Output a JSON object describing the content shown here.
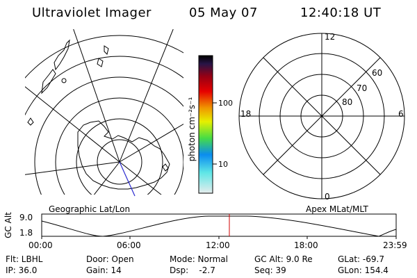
{
  "header": {
    "title": "Ultraviolet Imager",
    "date": "05 May 07",
    "time": "12:40:18 UT"
  },
  "colorbar": {
    "unit_label": "photon cm⁻²s⁻¹",
    "tick_100": "100",
    "tick_10": "10",
    "stops": [
      "#e6ecec",
      "#5ee6e6",
      "#0a8cf0",
      "#46dc46",
      "#e6f000",
      "#f09600",
      "#e60000",
      "#960014",
      "#281446",
      "#000000"
    ]
  },
  "right_panel": {
    "mlt_12": "12",
    "mlt_18": "18",
    "mlt_6": "6",
    "mlt_0": "0",
    "lat_60": "60",
    "lat_70": "70",
    "lat_80": "80"
  },
  "panel_labels": {
    "left": "Geographic Lat/Lon",
    "right": "Apex MLat/MLT"
  },
  "gc_plot": {
    "axis_label": "GC Alt",
    "y_max": "9.0",
    "y_min": "1.8",
    "x_ticks": [
      "00:00",
      "06:00",
      "12:00",
      "18:00",
      "23:59"
    ],
    "marker_color": "#d00000"
  },
  "info": {
    "flt": "Flt: LBHL",
    "ip": "IP: 36.0",
    "door": "Door: Open",
    "gain": "Gain: 14",
    "mode": "Mode: Normal",
    "dsp": "Dsp:    -2.7",
    "gc_alt": "GC Alt: 9.0 Re",
    "seq": "Seq: 39",
    "glat": "GLat: -69.7",
    "glon": "GLon: 154.4"
  }
}
